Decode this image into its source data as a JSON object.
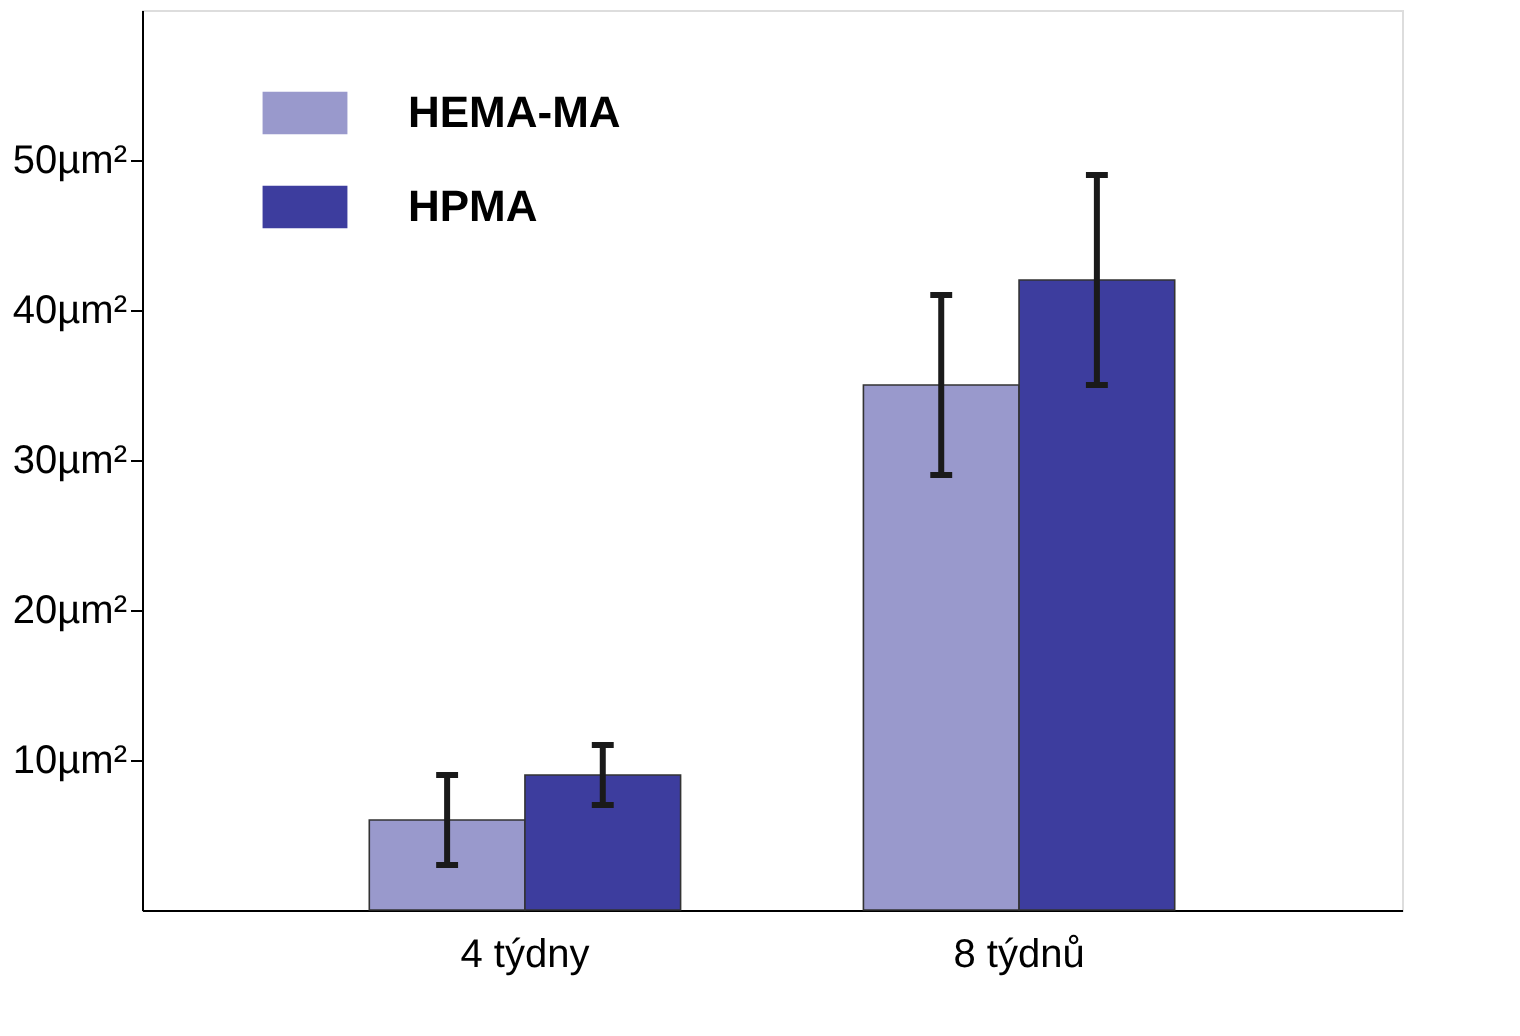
{
  "chart_data": {
    "type": "bar",
    "categories": [
      "4 týdny",
      "8 týdnů"
    ],
    "series": [
      {
        "name": "HEMA-MA",
        "color": "#9999cc",
        "values": [
          6,
          35
        ],
        "errors": [
          [
            3,
            9
          ],
          [
            29,
            41
          ]
        ]
      },
      {
        "name": "HPMA",
        "color": "#3d3d9e",
        "values": [
          9,
          42
        ],
        "errors": [
          [
            7,
            11
          ],
          [
            35,
            49
          ]
        ]
      }
    ],
    "ylim": [
      0,
      60
    ],
    "yticks": [
      {
        "value": 10,
        "label": "10µm²"
      },
      {
        "value": 20,
        "label": "20µm²"
      },
      {
        "value": 30,
        "label": "30µm²"
      },
      {
        "value": 40,
        "label": "40µm²"
      },
      {
        "value": 50,
        "label": "50µm²"
      }
    ],
    "grid": false,
    "legend": "top left"
  }
}
